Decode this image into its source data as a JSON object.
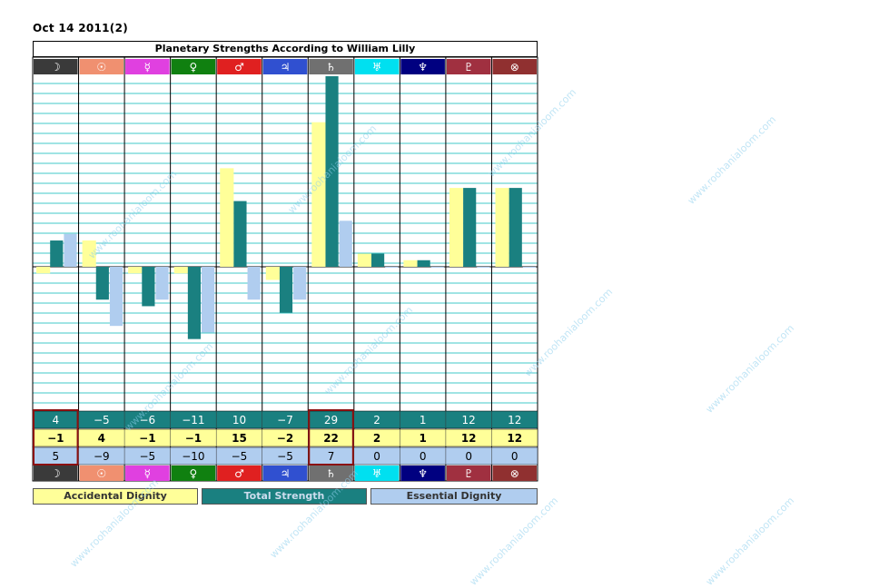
{
  "date_label": "Oct 14 2011(2)",
  "chart_data": {
    "type": "bar",
    "title": "Planetary Strengths According to William Lilly",
    "categories": [
      "☽",
      "☉",
      "☿",
      "♀",
      "♂",
      "♃",
      "♄",
      "♅",
      "♆",
      "♇",
      "⊗"
    ],
    "category_colors": [
      "#3a3a3a",
      "#f09070",
      "#e040e0",
      "#108010",
      "#e02020",
      "#3050d0",
      "#707070",
      "#00e0f0",
      "#000080",
      "#a03040",
      "#903030"
    ],
    "series": [
      {
        "name": "Accidental Dignity",
        "color": "#ffff99",
        "values": [
          -1,
          4,
          -1,
          -1,
          15,
          -2,
          22,
          2,
          1,
          12,
          12
        ]
      },
      {
        "name": "Total Strength",
        "color": "#1a8080",
        "values": [
          4,
          -5,
          -6,
          -11,
          10,
          -7,
          29,
          2,
          1,
          12,
          12
        ]
      },
      {
        "name": "Essential Dignity",
        "color": "#b0cdef",
        "values": [
          5,
          -9,
          -5,
          -10,
          -5,
          -5,
          7,
          0,
          0,
          0,
          0
        ]
      }
    ],
    "ylim": [
      -20,
      29
    ],
    "grid": true,
    "legend": "bottom"
  },
  "watermark_text": "www.roohanialoom.com"
}
